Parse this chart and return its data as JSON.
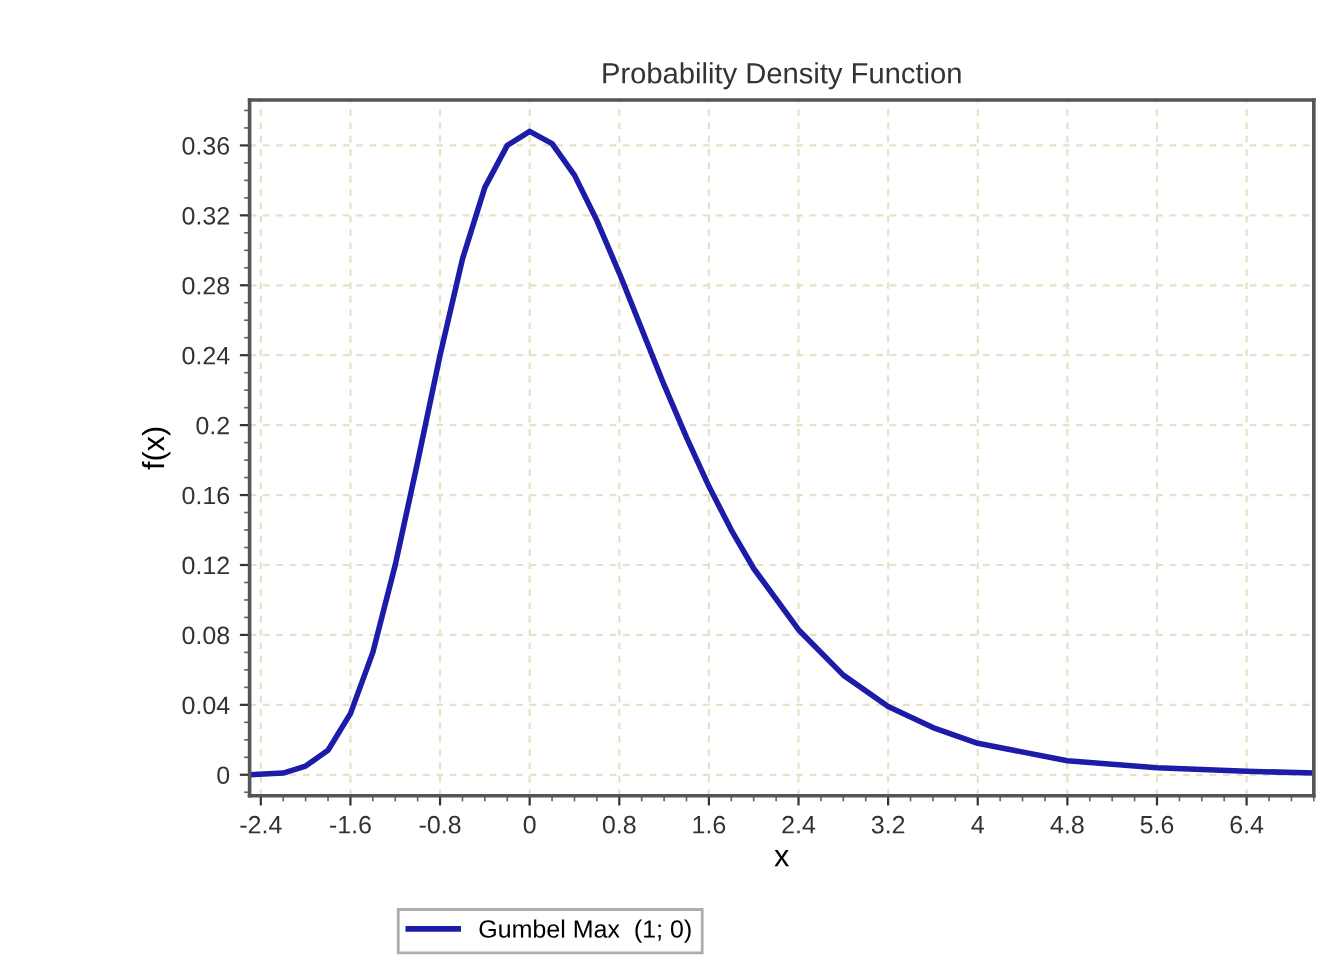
{
  "chart_data": {
    "type": "line",
    "title": "Probability Density Function",
    "xlabel": "x",
    "ylabel": "f(x)",
    "x": [
      -2.5,
      -2.2,
      -2.0,
      -1.8,
      -1.6,
      -1.4,
      -1.2,
      -1.0,
      -0.8,
      -0.6,
      -0.4,
      -0.2,
      0.0,
      0.2,
      0.4,
      0.6,
      0.8,
      1.0,
      1.2,
      1.4,
      1.6,
      1.8,
      2.0,
      2.4,
      2.8,
      3.2,
      3.6,
      4.0,
      4.8,
      5.6,
      6.4,
      7.0
    ],
    "series": [
      {
        "name": "Gumbel Max  (1; 0)",
        "color": "#1c1ca8",
        "values": [
          0.0,
          0.001,
          0.005,
          0.014,
          0.035,
          0.07,
          0.12,
          0.179,
          0.24,
          0.295,
          0.336,
          0.36,
          0.368,
          0.361,
          0.343,
          0.317,
          0.287,
          0.255,
          0.223,
          0.193,
          0.165,
          0.14,
          0.118,
          0.083,
          0.057,
          0.039,
          0.027,
          0.018,
          0.008,
          0.004,
          0.002,
          0.001
        ]
      }
    ],
    "xlim": [
      -2.5,
      7.0
    ],
    "ylim": [
      -0.012,
      0.386
    ],
    "xticks": [
      -2.4,
      -1.6,
      -0.8,
      0,
      0.8,
      1.6,
      2.4,
      3.2,
      4,
      4.8,
      5.6,
      6.4
    ],
    "yticks": [
      0,
      0.04,
      0.08,
      0.12,
      0.16,
      0.2,
      0.24,
      0.28,
      0.32,
      0.36
    ],
    "grid": true,
    "legend": "bottom",
    "marker": "none",
    "line_style": "solid"
  }
}
